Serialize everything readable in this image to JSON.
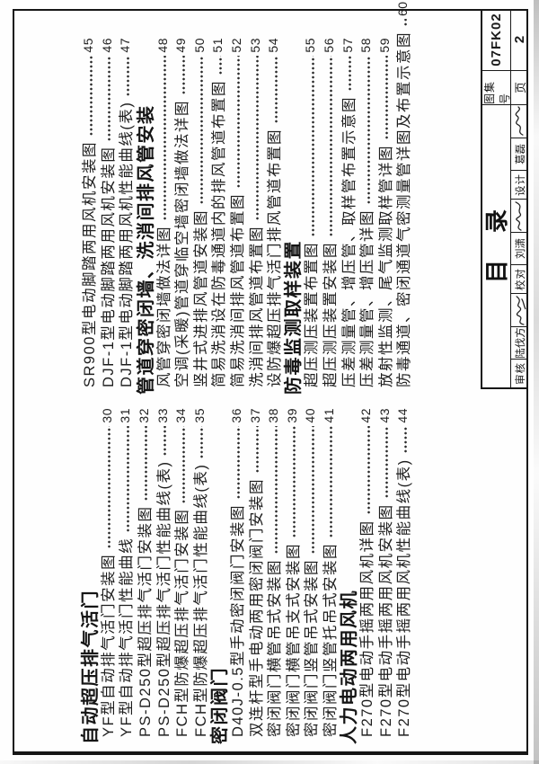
{
  "title_block": {
    "page_title": "目录",
    "atlas_no_label": "图集号",
    "atlas_no": "07FK02",
    "page_label": "页",
    "page_no": "2",
    "signatures": [
      {
        "role": "审核",
        "name": "陆伐方"
      },
      {
        "role": "校对",
        "name": "刘潇"
      },
      {
        "role": "设计",
        "name": "葛磊"
      }
    ]
  },
  "toc": {
    "left_column": [
      {
        "type": "header",
        "text": "自动超压排气活门"
      },
      {
        "type": "entry",
        "text": "YF型自动排气活门安装图",
        "page": "30"
      },
      {
        "type": "entry",
        "text": "YF型自动排气活门性能曲线",
        "page": "31"
      },
      {
        "type": "entry",
        "text": "PS-D250型超压排气活门安装图",
        "page": "32"
      },
      {
        "type": "entry",
        "text": "PS-D250型超压排气活门性能曲线(表)",
        "page": "33"
      },
      {
        "type": "entry",
        "text": "FCH型防爆超压排气活门安装图",
        "page": "34"
      },
      {
        "type": "entry",
        "text": "FCH型防爆超压排气活门性能曲线(表)",
        "page": "35"
      },
      {
        "type": "header",
        "text": "密闭阀门"
      },
      {
        "type": "entry",
        "text": "D40J-0.5型手动密闭阀门安装图",
        "page": "36"
      },
      {
        "type": "entry",
        "text": "双连杆型手电动两用密闭阀门安装图",
        "page": "37"
      },
      {
        "type": "entry",
        "text": "密闭阀门横管吊式安装图",
        "page": "38"
      },
      {
        "type": "entry",
        "text": "密闭阀门横管吊支式安装图",
        "page": "39"
      },
      {
        "type": "entry",
        "text": "密闭阀门竖管吊式安装图",
        "page": "40"
      },
      {
        "type": "entry",
        "text": "密闭阀门竖管托吊式安装图",
        "page": "41"
      },
      {
        "type": "header",
        "text": "人力电动两用风机"
      },
      {
        "type": "entry",
        "text": "F270型电动手摇两用风机详图",
        "page": "42"
      },
      {
        "type": "entry",
        "text": "F270型电动手摇两用风机安装图",
        "page": "43"
      },
      {
        "type": "entry",
        "text": "F270型电动手摇两用风机性能曲线(表)",
        "page": "44"
      }
    ],
    "right_column": [
      {
        "type": "entry",
        "text": "SR900型电动脚踏两用风机安装图",
        "page": "45"
      },
      {
        "type": "entry",
        "text": "DJF-1型电动脚踏两用风机安装图",
        "page": "46"
      },
      {
        "type": "entry",
        "text": "DJF-1型电动脚踏两用风机性能曲线(表)",
        "page": "47"
      },
      {
        "type": "header",
        "text": "管道穿密闭墙、洗消间排风管安装"
      },
      {
        "type": "entry",
        "text": "风管穿密闭墙做法详图",
        "page": "48"
      },
      {
        "type": "entry",
        "text": "空调(采暖)管道穿临空墙密闭墙做法详图",
        "page": "49"
      },
      {
        "type": "entry",
        "text": "竖井式进排风管道安装图",
        "page": "50"
      },
      {
        "type": "entry",
        "text": "简易洗消设在防毒通道内的排风管道布置图",
        "page": "51"
      },
      {
        "type": "entry",
        "text": "简易洗消间排风管道布置图",
        "page": "52"
      },
      {
        "type": "entry",
        "text": "洗消间排风管道布置图",
        "page": "53"
      },
      {
        "type": "entry",
        "text": "设防爆超压排气活门排风管道布置图",
        "page": "54"
      },
      {
        "type": "header",
        "text": "防毒监测取样装置"
      },
      {
        "type": "entry",
        "text": "超压测压装置布置图",
        "page": "55"
      },
      {
        "type": "entry",
        "text": "超压测压装置安装图",
        "page": "56"
      },
      {
        "type": "entry",
        "text": "压差测量管、增压管、取样管布置示意图",
        "page": "57"
      },
      {
        "type": "entry",
        "text": "压差测量管、增压管详图",
        "page": "58"
      },
      {
        "type": "entry",
        "text": "放射性监测、尾气监测取样管详图",
        "page": "59"
      },
      {
        "type": "entry",
        "text": "防毒通道、密闭通道气密测量管详图及布置示意图",
        "page": "60"
      }
    ]
  }
}
